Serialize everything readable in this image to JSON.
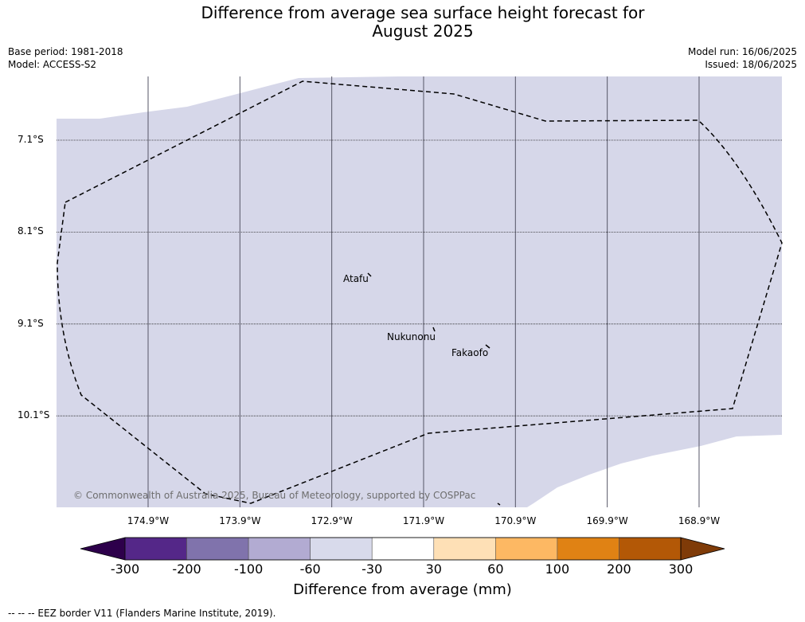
{
  "title_line1": "Difference from average sea surface height forecast for",
  "title_line2": "August 2025",
  "meta": {
    "base_period": "Base period: 1981-2018",
    "model": "Model: ACCESS-S2",
    "model_run": "Model run: 16/06/2025",
    "issued": "Issued: 18/06/2025"
  },
  "map": {
    "sea_fill_color": "#d6d7e9",
    "eez_line_color": "#000000",
    "grid_color": "#555566",
    "lat_ticks": [
      {
        "value": -7.1,
        "label": "7.1°S"
      },
      {
        "value": -8.1,
        "label": "8.1°S"
      },
      {
        "value": -9.1,
        "label": "9.1°S"
      },
      {
        "value": -10.1,
        "label": "10.1°S"
      }
    ],
    "lon_ticks": [
      {
        "value": -174.9,
        "label": "174.9°W"
      },
      {
        "value": -173.9,
        "label": "173.9°W"
      },
      {
        "value": -172.9,
        "label": "172.9°W"
      },
      {
        "value": -171.9,
        "label": "171.9°W"
      },
      {
        "value": -170.9,
        "label": "170.9°W"
      },
      {
        "value": -169.9,
        "label": "169.9°W"
      },
      {
        "value": -168.9,
        "label": "168.9°W"
      }
    ],
    "islands": [
      {
        "name": "Atafu",
        "lon": -172.5,
        "lat": -8.55
      },
      {
        "name": "Nukunonu",
        "lon": -171.8,
        "lat": -9.15
      },
      {
        "name": "Fakaofo",
        "lon": -171.2,
        "lat": -9.35
      }
    ],
    "copyright": "© Commonwealth of Australia 2025, Bureau of Meteorology, supported by COSPPac"
  },
  "colorbar": {
    "label": "Difference from average (mm)",
    "ticks": [
      "-300",
      "-200",
      "-100",
      "-60",
      "-30",
      "30",
      "60",
      "100",
      "200",
      "300"
    ],
    "under_color": "#2d004b",
    "over_color": "#7f3b08",
    "colors": [
      "#542788",
      "#8073ac",
      "#b2abd2",
      "#d8daeb",
      "#ffffff",
      "#fee0b6",
      "#fdb863",
      "#e08214",
      "#b35806"
    ]
  },
  "footer": "--  --  -- EEZ border V11 (Flanders Marine Institute, 2019)."
}
